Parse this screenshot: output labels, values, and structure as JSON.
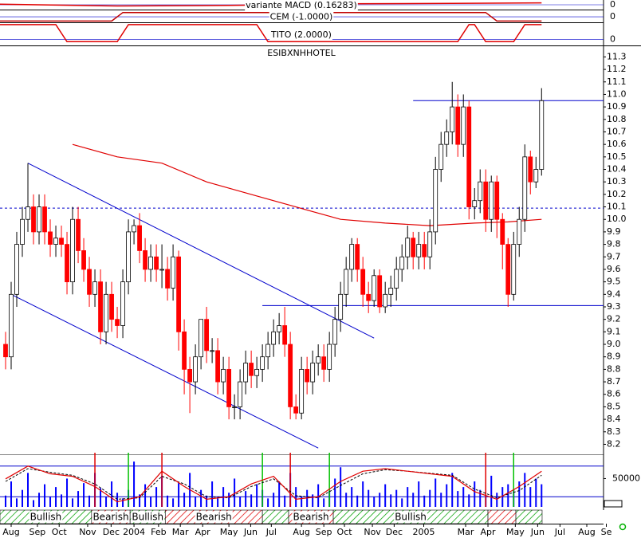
{
  "chart_data": [
    {
      "type": "indicator",
      "title": "variante MACD (0.16283)",
      "ylim": [
        -0.4,
        0.4
      ],
      "yticks": [
        0
      ],
      "color": "#e00000",
      "x": [
        -1,
        20,
        40,
        60,
        80,
        96
      ],
      "values": [
        0.05,
        -0.1,
        -0.05,
        0.08,
        0.12,
        0.16
      ]
    },
    {
      "type": "indicator",
      "title": "CEM (-1.0000)",
      "ylim": [
        -1.3,
        1.5
      ],
      "yticks": [
        0
      ],
      "color": "#c00000",
      "x": [
        -1,
        19,
        21,
        86,
        88,
        96
      ],
      "values": [
        -1,
        -1,
        1,
        1,
        -1,
        -1
      ]
    },
    {
      "type": "indicator",
      "title": "TITO (2.0000)",
      "ylim": [
        -0.8,
        2.2
      ],
      "yticks": [
        0
      ],
      "color": "#e00000",
      "x": [
        -1,
        9,
        11,
        20,
        22,
        45,
        47,
        81,
        83,
        84,
        86,
        91,
        93,
        96
      ],
      "values": [
        2,
        2,
        -0.3,
        -0.3,
        2,
        2,
        -0.3,
        -0.3,
        2,
        2,
        -0.3,
        -0.3,
        2,
        2
      ]
    },
    {
      "type": "candlestick",
      "title": "ESIBXNHHOTEL",
      "xlim": [
        -1,
        107.1
      ],
      "xticks": [
        {
          "value": 1,
          "label": "Aug"
        },
        {
          "value": 5.7,
          "label": "Sep"
        },
        {
          "value": 9.6,
          "label": "Oct"
        },
        {
          "value": 14.7,
          "label": "Nov"
        },
        {
          "value": 18.9,
          "label": "Dec"
        },
        {
          "value": 23,
          "label": "2004"
        },
        {
          "value": 27.4,
          "label": "Feb"
        },
        {
          "value": 31.3,
          "label": "Mar"
        },
        {
          "value": 35.3,
          "label": "Apr"
        },
        {
          "value": 40,
          "label": "May"
        },
        {
          "value": 43.9,
          "label": "Jun"
        },
        {
          "value": 47.6,
          "label": "Jul"
        },
        {
          "value": 53,
          "label": "Aug"
        },
        {
          "value": 57,
          "label": "Sep"
        },
        {
          "value": 60.7,
          "label": "Oct"
        },
        {
          "value": 65.7,
          "label": "Nov"
        },
        {
          "value": 69.6,
          "label": "Dec"
        },
        {
          "value": 74.9,
          "label": "2005"
        },
        {
          "value": 82.4,
          "label": "Mar"
        },
        {
          "value": 86.4,
          "label": "Apr"
        },
        {
          "value": 91.3,
          "label": "May"
        },
        {
          "value": 95.3,
          "label": "Jun"
        },
        {
          "value": 99.3,
          "label": "Jul"
        },
        {
          "value": 104.1,
          "label": "Aug"
        },
        {
          "value": 107.6,
          "label": "Se"
        }
      ],
      "ylim": [
        8.12,
        11.36
      ],
      "yticks": [
        11.3,
        11.2,
        11.1,
        {
          "value": 11.0,
          "label": "11.0"
        },
        10.9,
        10.8,
        10.7,
        10.6,
        10.5,
        10.4,
        10.3,
        10.2,
        10.1,
        {
          "value": 10.0,
          "label": "10.0"
        },
        9.9,
        9.8,
        9.7,
        9.6,
        9.5,
        9.4,
        9.3,
        9.2,
        9.1,
        {
          "value": 9.0,
          "label": "9.0"
        },
        8.9,
        8.8,
        8.7,
        8.6,
        8.5,
        8.4,
        8.3,
        8.2
      ],
      "up_color": "#ffffff",
      "down_color": "#ff0000",
      "open": [
        9.0,
        8.9,
        9.4,
        9.8,
        10.0,
        10.1,
        9.9,
        10.1,
        9.9,
        9.8,
        9.85,
        9.8,
        9.5,
        10.0,
        9.75,
        9.6,
        9.4,
        9.5,
        9.1,
        9.4,
        9.2,
        9.15,
        9.5,
        9.9,
        9.95,
        9.75,
        9.6,
        9.7,
        9.6,
        9.6,
        9.45,
        9.7,
        9.1,
        8.8,
        8.7,
        8.9,
        9.2,
        8.95,
        8.95,
        8.7,
        8.8,
        8.5,
        8.5,
        8.7,
        8.85,
        8.75,
        8.8,
        8.9,
        9.0,
        9.1,
        9.15,
        9.0,
        8.5,
        8.45,
        8.8,
        8.7,
        8.85,
        8.9,
        8.8,
        9.0,
        9.2,
        9.4,
        9.6,
        9.8,
        9.6,
        9.4,
        9.35,
        9.55,
        9.3,
        9.4,
        9.45,
        9.6,
        9.7,
        9.85,
        9.7,
        9.8,
        9.7,
        9.9,
        10.4,
        10.6,
        10.7,
        10.9,
        10.6,
        10.9,
        10.1,
        10.15,
        10.3,
        10.0,
        10.3,
        10.0,
        9.8,
        9.4,
        9.8,
        10.0,
        10.5,
        10.3,
        10.4
      ],
      "close": [
        8.9,
        9.4,
        9.8,
        10.0,
        10.1,
        9.9,
        10.1,
        9.9,
        9.8,
        9.85,
        9.8,
        9.5,
        10.0,
        9.75,
        9.6,
        9.4,
        9.5,
        9.1,
        9.4,
        9.2,
        9.15,
        9.5,
        9.9,
        9.95,
        9.75,
        9.6,
        9.7,
        9.6,
        9.6,
        9.45,
        9.7,
        9.1,
        8.8,
        8.7,
        8.9,
        9.2,
        8.95,
        8.95,
        8.7,
        8.8,
        8.5,
        8.5,
        8.7,
        8.85,
        8.75,
        8.8,
        8.9,
        9.0,
        9.1,
        9.15,
        9.0,
        8.5,
        8.45,
        8.8,
        8.7,
        8.85,
        8.9,
        8.8,
        9.0,
        9.2,
        9.4,
        9.6,
        9.8,
        9.6,
        9.4,
        9.35,
        9.55,
        9.3,
        9.4,
        9.45,
        9.6,
        9.7,
        9.85,
        9.7,
        9.8,
        9.7,
        9.9,
        10.4,
        10.6,
        10.7,
        10.9,
        10.6,
        10.9,
        10.1,
        10.15,
        10.3,
        10.0,
        10.3,
        10.0,
        9.8,
        9.4,
        9.8,
        10.0,
        10.5,
        10.3,
        10.4,
        10.95
      ],
      "high": [
        9.1,
        9.5,
        9.9,
        10.1,
        10.45,
        10.2,
        10.2,
        10.2,
        10.0,
        9.95,
        9.95,
        9.9,
        10.1,
        10.1,
        9.85,
        9.7,
        9.6,
        9.6,
        9.5,
        9.5,
        9.3,
        9.6,
        10.0,
        10.0,
        10.05,
        9.85,
        9.8,
        9.8,
        9.8,
        9.7,
        9.8,
        9.75,
        9.2,
        8.9,
        9.0,
        9.2,
        9.3,
        9.05,
        9.05,
        8.9,
        8.9,
        8.6,
        8.8,
        8.95,
        8.95,
        8.9,
        9.0,
        9.1,
        9.2,
        9.25,
        9.3,
        9.1,
        8.6,
        8.9,
        8.9,
        8.95,
        9.0,
        9.0,
        9.1,
        9.3,
        9.5,
        9.7,
        9.85,
        9.85,
        9.7,
        9.5,
        9.6,
        9.6,
        9.5,
        9.55,
        9.7,
        9.8,
        9.95,
        9.9,
        9.9,
        9.9,
        10.0,
        10.5,
        10.7,
        10.8,
        11.1,
        11.0,
        11.0,
        10.95,
        10.25,
        10.4,
        10.4,
        10.35,
        10.35,
        10.05,
        9.85,
        9.9,
        10.1,
        10.6,
        10.55,
        10.5,
        11.05
      ],
      "low": [
        8.8,
        8.8,
        9.3,
        9.7,
        9.9,
        9.8,
        9.8,
        9.8,
        9.7,
        9.7,
        9.7,
        9.4,
        9.4,
        9.65,
        9.5,
        9.3,
        9.3,
        9.0,
        9.0,
        9.1,
        9.05,
        9.05,
        9.4,
        9.8,
        9.65,
        9.5,
        9.5,
        9.5,
        9.45,
        9.35,
        9.35,
        8.95,
        8.6,
        8.45,
        8.6,
        8.8,
        8.85,
        8.85,
        8.6,
        8.6,
        8.4,
        8.4,
        8.4,
        8.6,
        8.65,
        8.65,
        8.7,
        8.8,
        8.9,
        9.0,
        8.9,
        8.4,
        8.4,
        8.4,
        8.6,
        8.6,
        8.75,
        8.7,
        8.7,
        8.9,
        9.1,
        9.3,
        9.5,
        9.5,
        9.3,
        9.25,
        9.3,
        9.25,
        9.25,
        9.3,
        9.35,
        9.5,
        9.6,
        9.6,
        9.6,
        9.6,
        9.6,
        9.8,
        10.3,
        10.5,
        10.6,
        10.5,
        10.5,
        10.0,
        10.0,
        10.05,
        9.9,
        9.9,
        9.85,
        9.6,
        9.3,
        9.35,
        9.7,
        9.9,
        10.2,
        10.25,
        10.35
      ],
      "ma": {
        "color": "#e00000",
        "x": [
          12,
          20,
          28,
          36,
          44,
          52,
          60,
          68,
          76,
          84,
          90,
          96
        ],
        "values": [
          10.6,
          10.5,
          10.45,
          10.3,
          10.2,
          10.1,
          10.0,
          9.97,
          9.95,
          9.97,
          9.98,
          10.0
        ]
      },
      "lines": [
        {
          "color": "#0000cc",
          "dash": true,
          "x": [
            -1,
            107.1
          ],
          "values": [
            10.09,
            10.09
          ]
        },
        {
          "color": "#0000cc",
          "dash": false,
          "x": [
            73,
            107.1
          ],
          "values": [
            10.95,
            10.95
          ]
        },
        {
          "color": "#0000cc",
          "dash": false,
          "x": [
            46,
            107.1
          ],
          "values": [
            9.31,
            9.31
          ]
        },
        {
          "color": "#0000cc",
          "dash": false,
          "x": [
            4,
            66
          ],
          "values": [
            10.45,
            9.05
          ]
        },
        {
          "color": "#0000cc",
          "dash": false,
          "x": [
            1,
            56
          ],
          "values": [
            9.4,
            8.17
          ]
        }
      ]
    },
    {
      "type": "volume",
      "ylim": [
        0,
        90000
      ],
      "yticks": [
        50000
      ],
      "color": "#0000ff",
      "values": [
        20000,
        45000,
        15000,
        30000,
        60000,
        12000,
        25000,
        40000,
        18000,
        35000,
        22000,
        50000,
        15000,
        28000,
        42000,
        20000,
        60000,
        33000,
        18000,
        45000,
        25000,
        15000,
        30000,
        80000,
        22000,
        40000,
        18000,
        35000,
        55000,
        20000,
        15000,
        42000,
        25000,
        60000,
        18000,
        30000,
        20000,
        45000,
        15000,
        35000,
        25000,
        50000,
        18000,
        28000,
        22000,
        40000,
        30000,
        15000,
        25000,
        45000,
        20000,
        60000,
        35000,
        18000,
        30000,
        22000,
        40000,
        15000,
        28000,
        50000,
        70000,
        25000,
        35000,
        20000,
        45000,
        30000,
        18000,
        25000,
        40000,
        22000,
        30000,
        15000,
        35000,
        25000,
        45000,
        20000,
        30000,
        50000,
        25000,
        40000,
        60000,
        28000,
        35000,
        22000,
        45000,
        30000,
        20000,
        55000,
        25000,
        35000,
        40000,
        30000,
        45000,
        60000,
        35000,
        50000,
        40000
      ],
      "y2lim": [
        0,
        100
      ],
      "levels": [
        80,
        20
      ],
      "k": {
        "color": "#e00000",
        "x": [
          0,
          4,
          8,
          12,
          16,
          20,
          24,
          28,
          32,
          36,
          40,
          44,
          48,
          52,
          56,
          60,
          64,
          68,
          72,
          76,
          80,
          84,
          88,
          92,
          96
        ],
        "values": [
          55,
          80,
          65,
          60,
          40,
          10,
          20,
          70,
          40,
          15,
          20,
          45,
          60,
          15,
          20,
          50,
          70,
          75,
          70,
          65,
          60,
          30,
          15,
          40,
          70
        ]
      },
      "d": {
        "color": "#000000",
        "x": [
          0,
          4,
          8,
          12,
          16,
          20,
          24,
          28,
          32,
          36,
          40,
          44,
          48,
          52,
          56,
          60,
          64,
          68,
          72,
          76,
          80,
          84,
          88,
          92,
          96
        ],
        "values": [
          50,
          75,
          68,
          62,
          45,
          15,
          18,
          60,
          45,
          20,
          18,
          40,
          55,
          22,
          18,
          42,
          65,
          73,
          70,
          66,
          62,
          35,
          18,
          32,
          62
        ]
      },
      "signals": {
        "x": [
          16,
          22,
          28,
          46,
          51,
          58,
          86,
          91
        ],
        "colors": [
          "#e00000",
          "#00c000",
          "#e00000",
          "#00c000",
          "#e00000",
          "#00c000",
          "#e00000",
          "#00c000"
        ]
      },
      "bands": [
        {
          "start": -1,
          "end": 15.4,
          "hatch": "green",
          "label": "Bullish"
        },
        {
          "start": 15.4,
          "end": 22.3,
          "hatch": "red",
          "label": "Bearish"
        },
        {
          "start": 22.3,
          "end": 28.6,
          "hatch": "green",
          "label": "Bullish"
        },
        {
          "start": 28.6,
          "end": 46,
          "hatch": "red",
          "label": "Bearish"
        },
        {
          "start": 46,
          "end": 50.7,
          "hatch": "green"
        },
        {
          "start": 50.7,
          "end": 58.7,
          "hatch": "red",
          "label": "Bearish"
        },
        {
          "start": 58.7,
          "end": 86.4,
          "hatch": "green",
          "label": "Bullish"
        },
        {
          "start": 86.4,
          "end": 91.4,
          "hatch": "red"
        },
        {
          "start": 91.4,
          "end": 96.1,
          "hatch": "green"
        }
      ]
    }
  ]
}
